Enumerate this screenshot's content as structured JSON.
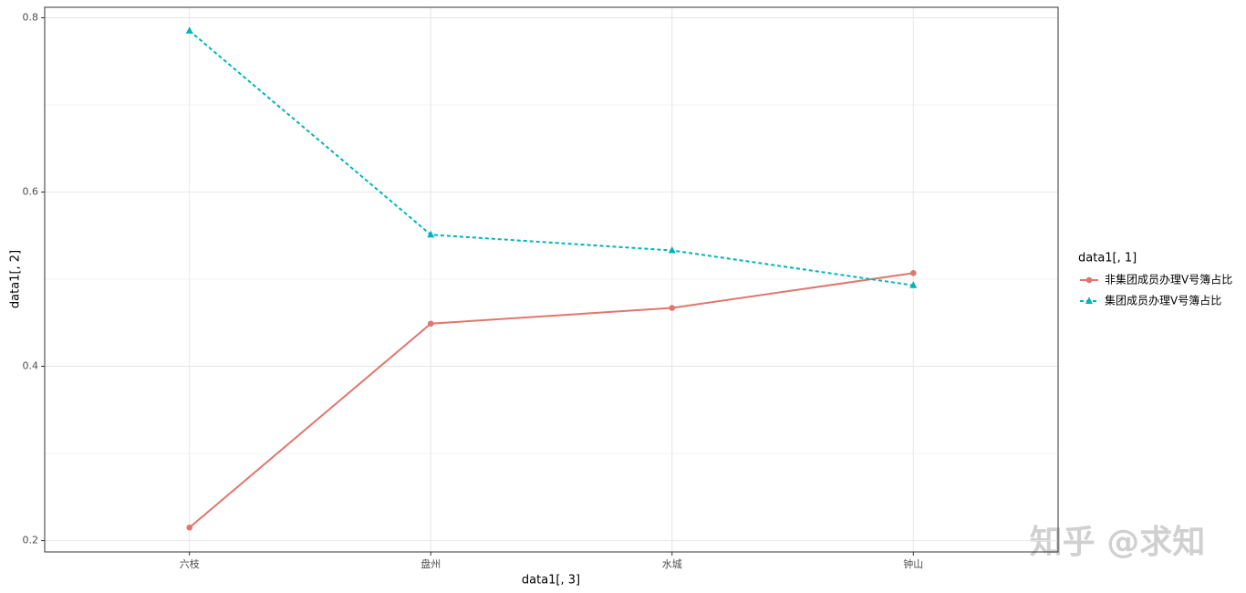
{
  "chart_data": {
    "type": "line",
    "x_label": "data1[, 3]",
    "y_label": "data1[, 2]",
    "categories": [
      "六枝",
      "盘州",
      "水城",
      "钟山"
    ],
    "series": [
      {
        "name": "非集团成员办理V号簿占比",
        "color": "#e0766d",
        "marker": "circle",
        "dash": "solid",
        "values": [
          0.215,
          0.449,
          0.467,
          0.507
        ]
      },
      {
        "name": "集团成员办理V号簿占比",
        "color": "#00b4b8",
        "marker": "triangle",
        "dash": "dashed",
        "values": [
          0.785,
          0.551,
          0.533,
          0.493
        ]
      }
    ],
    "legend_title": "data1[, 1]",
    "legend_position": "right",
    "ylim": [
      0.187,
      0.812
    ],
    "yticks": [
      0.2,
      0.4,
      0.6,
      0.8
    ],
    "grid": true,
    "watermark": "知乎 @求知"
  }
}
